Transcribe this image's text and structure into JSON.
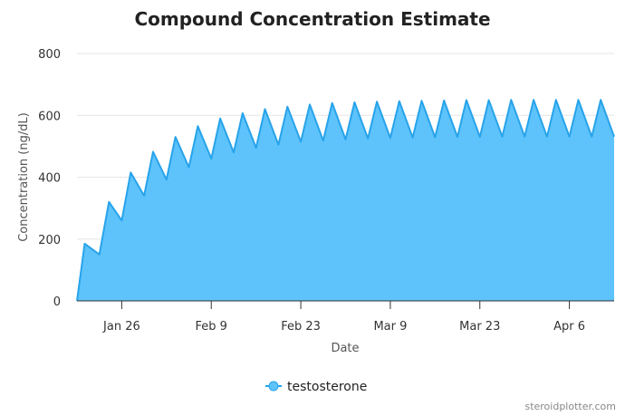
{
  "colors": {
    "series_fill": "#5ec3fb",
    "series_line": "#27a3ea",
    "grid": "#e6e6e6",
    "axis": "#333333"
  },
  "credit": "steroidplotter.com",
  "chart_data": {
    "type": "area",
    "title": "Compound Concentration Estimate",
    "xlabel": "Date",
    "ylabel": "Concentration (ng/dL)",
    "ylim": [
      0,
      800
    ],
    "y_ticks": [
      "0",
      "200",
      "400",
      "600",
      "800"
    ],
    "x_ticks": [
      {
        "day": 7,
        "label": "Jan 26"
      },
      {
        "day": 21,
        "label": "Feb 9"
      },
      {
        "day": 35,
        "label": "Feb 23"
      },
      {
        "day": 49,
        "label": "Mar 9"
      },
      {
        "day": 63,
        "label": "Mar 23"
      },
      {
        "day": 77,
        "label": "Apr 6"
      }
    ],
    "x_range": [
      0,
      84
    ],
    "grid": true,
    "legend_position": "bottom",
    "series": [
      {
        "name": "testosterone",
        "points": [
          [
            0,
            0
          ],
          [
            1.2,
            185
          ],
          [
            3.5,
            150
          ],
          [
            5,
            320
          ],
          [
            7,
            260
          ],
          [
            8.4,
            415
          ],
          [
            10.5,
            340
          ],
          [
            11.9,
            482
          ],
          [
            14,
            392
          ],
          [
            15.4,
            530
          ],
          [
            17.5,
            432
          ],
          [
            18.9,
            565
          ],
          [
            21,
            460
          ],
          [
            22.4,
            590
          ],
          [
            24.5,
            480
          ],
          [
            25.9,
            607
          ],
          [
            28,
            495
          ],
          [
            29.4,
            620
          ],
          [
            31.5,
            505
          ],
          [
            32.9,
            628
          ],
          [
            35,
            515
          ],
          [
            36.4,
            635
          ],
          [
            38.5,
            518
          ],
          [
            39.9,
            640
          ],
          [
            42,
            522
          ],
          [
            43.4,
            642
          ],
          [
            45.5,
            525
          ],
          [
            46.9,
            644
          ],
          [
            49,
            527
          ],
          [
            50.4,
            646
          ],
          [
            52.5,
            528
          ],
          [
            53.9,
            647
          ],
          [
            56,
            529
          ],
          [
            57.4,
            648
          ],
          [
            59.5,
            530
          ],
          [
            60.9,
            649
          ],
          [
            63,
            530
          ],
          [
            64.4,
            649
          ],
          [
            66.5,
            531
          ],
          [
            67.9,
            650
          ],
          [
            70,
            531
          ],
          [
            71.4,
            650
          ],
          [
            73.5,
            531
          ],
          [
            74.9,
            650
          ],
          [
            77,
            531
          ],
          [
            78.4,
            650
          ],
          [
            80.5,
            531
          ],
          [
            81.9,
            650
          ],
          [
            84,
            531
          ]
        ]
      }
    ]
  }
}
